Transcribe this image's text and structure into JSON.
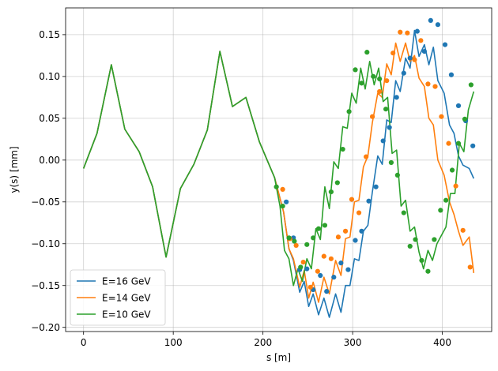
{
  "chart_data": {
    "type": "line",
    "title": "",
    "xlabel": "s [m]",
    "ylabel": "y(s) [mm]",
    "xlim": [
      -20,
      455
    ],
    "ylim": [
      -0.205,
      0.182
    ],
    "xticks": [
      0,
      100,
      200,
      300,
      400
    ],
    "xtick_labels": [
      "0",
      "100",
      "200",
      "300",
      "400"
    ],
    "yticks": [
      -0.2,
      -0.15,
      -0.1,
      -0.05,
      0.0,
      0.05,
      0.1,
      0.15
    ],
    "ytick_labels": [
      "−0.20",
      "−0.15",
      "−0.10",
      "−0.05",
      "0.00",
      "0.05",
      "0.10",
      "0.15"
    ],
    "grid": true,
    "legend_position": "lower-left",
    "series": [
      {
        "name": "E=16 GeV",
        "color": "#1f77b4",
        "line": {
          "x": [
            0,
            15,
            31,
            46,
            62,
            77,
            92,
            108,
            123,
            138,
            152,
            166,
            181,
            196,
            213,
            223,
            229,
            234,
            241,
            246,
            251,
            256,
            262,
            268,
            274,
            281,
            287,
            292,
            297,
            302,
            307,
            312,
            317,
            322,
            328,
            333,
            338,
            343,
            348,
            353,
            359,
            364,
            369,
            374,
            380,
            385,
            390,
            395,
            402,
            408,
            413,
            418,
            423,
            430,
            435
          ],
          "y": [
            -0.01,
            0.032,
            0.114,
            0.037,
            0.01,
            -0.032,
            -0.116,
            -0.034,
            -0.005,
            0.036,
            0.13,
            0.064,
            0.075,
            0.022,
            -0.021,
            -0.062,
            -0.106,
            -0.12,
            -0.158,
            -0.145,
            -0.175,
            -0.16,
            -0.185,
            -0.165,
            -0.188,
            -0.16,
            -0.182,
            -0.15,
            -0.15,
            -0.118,
            -0.12,
            -0.085,
            -0.078,
            -0.038,
            0.005,
            -0.005,
            0.048,
            0.045,
            0.095,
            0.082,
            0.122,
            0.11,
            0.155,
            0.124,
            0.138,
            0.114,
            0.135,
            0.095,
            0.08,
            0.042,
            0.032,
            0.005,
            -0.006,
            -0.01,
            -0.022
          ]
        },
        "dots": {
          "x": [
            226,
            234,
            241,
            249,
            256,
            264,
            271,
            279,
            287,
            295,
            303,
            310,
            318,
            326,
            334,
            341,
            349,
            357,
            364,
            372,
            380,
            387,
            395,
            403,
            410,
            418,
            426,
            434
          ],
          "y": [
            -0.05,
            -0.093,
            -0.131,
            -0.13,
            -0.155,
            -0.138,
            -0.157,
            -0.14,
            -0.123,
            -0.131,
            -0.096,
            -0.085,
            -0.049,
            -0.032,
            0.023,
            0.039,
            0.075,
            0.104,
            0.122,
            0.154,
            0.13,
            0.167,
            0.162,
            0.138,
            0.102,
            0.065,
            0.047,
            0.017
          ]
        }
      },
      {
        "name": "E=14 GeV",
        "color": "#ff7f0e",
        "line": {
          "x": [
            0,
            15,
            31,
            46,
            62,
            77,
            92,
            108,
            123,
            138,
            152,
            166,
            181,
            196,
            213,
            223,
            229,
            234,
            241,
            246,
            251,
            256,
            262,
            268,
            274,
            281,
            287,
            292,
            297,
            302,
            307,
            312,
            317,
            322,
            328,
            333,
            338,
            343,
            348,
            353,
            359,
            364,
            369,
            374,
            380,
            385,
            390,
            395,
            402,
            408,
            413,
            418,
            423,
            430,
            435
          ],
          "y": [
            -0.01,
            0.032,
            0.114,
            0.037,
            0.01,
            -0.032,
            -0.116,
            -0.034,
            -0.005,
            0.036,
            0.13,
            0.064,
            0.075,
            0.022,
            -0.021,
            -0.062,
            -0.106,
            -0.118,
            -0.152,
            -0.132,
            -0.165,
            -0.146,
            -0.17,
            -0.14,
            -0.16,
            -0.12,
            -0.138,
            -0.094,
            -0.092,
            -0.05,
            -0.048,
            -0.008,
            0.005,
            0.045,
            0.08,
            0.075,
            0.115,
            0.102,
            0.14,
            0.118,
            0.14,
            0.118,
            0.125,
            0.098,
            0.088,
            0.05,
            0.042,
            0.0,
            -0.018,
            -0.05,
            -0.065,
            -0.085,
            -0.102,
            -0.092,
            -0.135
          ]
        },
        "dots": {
          "x": [
            222,
            230,
            237,
            245,
            253,
            261,
            268,
            276,
            284,
            292,
            299,
            307,
            315,
            322,
            330,
            338,
            345,
            353,
            361,
            369,
            376,
            384,
            392,
            399,
            407,
            415,
            423,
            431
          ],
          "y": [
            -0.035,
            -0.094,
            -0.102,
            -0.122,
            -0.152,
            -0.133,
            -0.115,
            -0.118,
            -0.092,
            -0.085,
            -0.047,
            -0.063,
            0.004,
            0.052,
            0.082,
            0.095,
            0.128,
            0.153,
            0.152,
            0.12,
            0.143,
            0.091,
            0.088,
            0.052,
            0.02,
            -0.031,
            -0.084,
            -0.128
          ]
        }
      },
      {
        "name": "E=10 GeV",
        "color": "#2ca02c",
        "line": {
          "x": [
            0,
            15,
            31,
            46,
            62,
            77,
            92,
            108,
            123,
            138,
            152,
            166,
            181,
            196,
            213,
            219,
            224,
            229,
            234,
            239,
            244,
            249,
            254,
            259,
            264,
            269,
            274,
            279,
            284,
            289,
            294,
            299,
            304,
            309,
            314,
            319,
            324,
            329,
            334,
            339,
            344,
            349,
            354,
            359,
            364,
            369,
            374,
            379,
            384,
            389,
            394,
            399,
            404,
            409,
            414,
            419,
            424,
            429,
            435
          ],
          "y": [
            -0.01,
            0.032,
            0.114,
            0.037,
            0.01,
            -0.032,
            -0.116,
            -0.034,
            -0.005,
            0.036,
            0.13,
            0.064,
            0.075,
            0.022,
            -0.021,
            -0.055,
            -0.108,
            -0.118,
            -0.15,
            -0.13,
            -0.145,
            -0.118,
            -0.13,
            -0.082,
            -0.095,
            -0.032,
            -0.058,
            -0.002,
            -0.01,
            0.04,
            0.038,
            0.08,
            0.068,
            0.11,
            0.085,
            0.118,
            0.09,
            0.11,
            0.07,
            0.075,
            0.008,
            0.012,
            -0.055,
            -0.048,
            -0.085,
            -0.08,
            -0.11,
            -0.13,
            -0.108,
            -0.12,
            -0.1,
            -0.09,
            -0.08,
            -0.04,
            -0.04,
            0.02,
            0.01,
            0.06,
            0.082
          ]
        },
        "dots": {
          "x": [
            215,
            222,
            229,
            235,
            242,
            249,
            256,
            262,
            269,
            276,
            283,
            289,
            296,
            303,
            310,
            316,
            323,
            330,
            337,
            343,
            350,
            357,
            364,
            370,
            377,
            384,
            391,
            398,
            404,
            411,
            418,
            425,
            432
          ],
          "y": [
            -0.032,
            -0.055,
            -0.093,
            -0.097,
            -0.128,
            -0.101,
            -0.093,
            -0.082,
            -0.078,
            -0.038,
            -0.027,
            0.013,
            0.058,
            0.108,
            0.092,
            0.129,
            0.1,
            0.097,
            0.061,
            -0.003,
            -0.018,
            -0.063,
            -0.103,
            -0.095,
            -0.12,
            -0.133,
            -0.095,
            -0.06,
            -0.048,
            -0.012,
            0.02,
            0.049,
            0.09
          ]
        }
      }
    ]
  }
}
